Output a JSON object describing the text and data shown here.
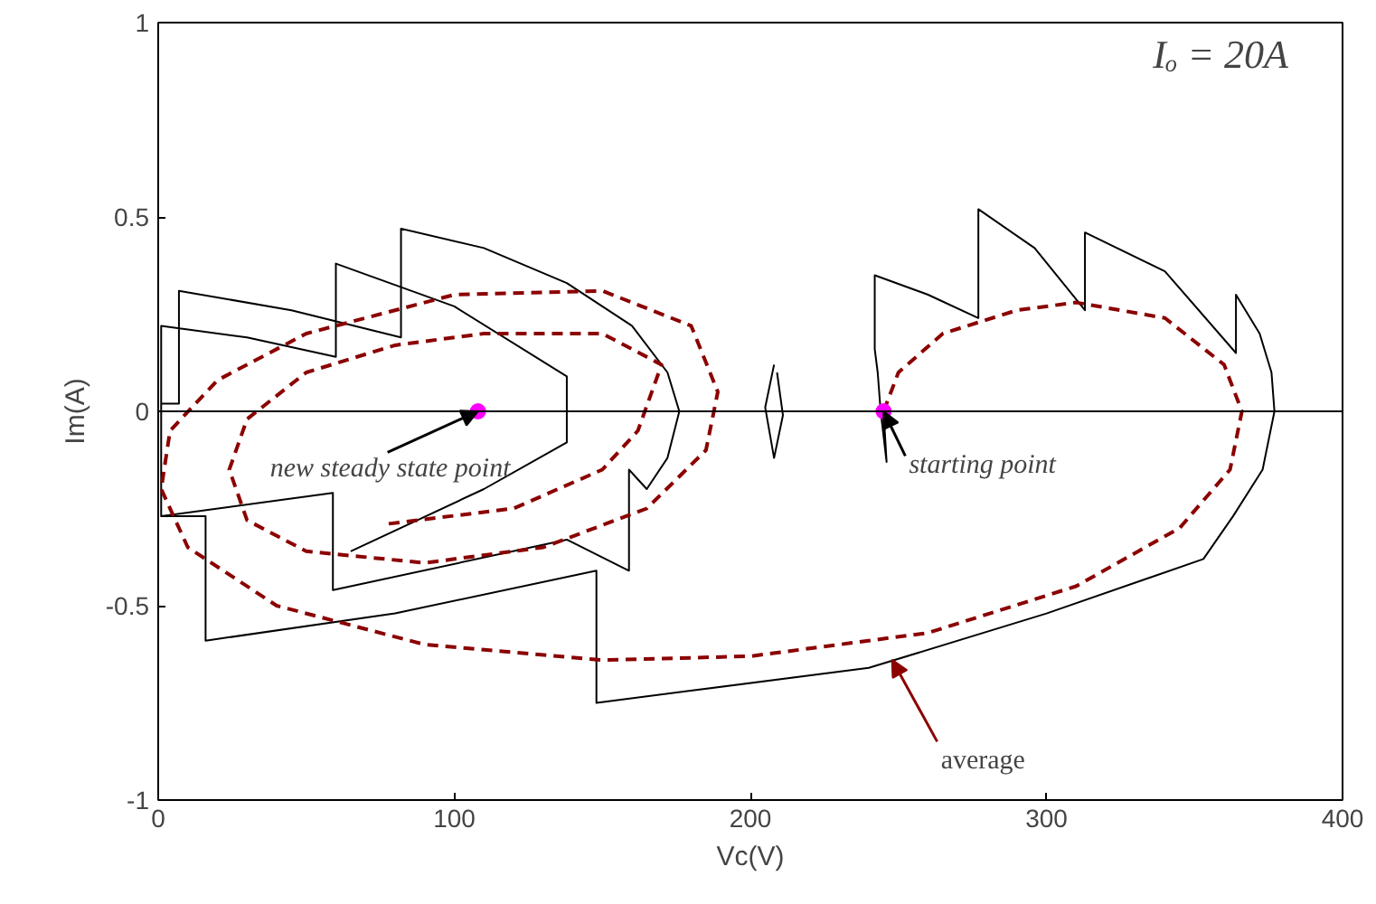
{
  "chart_data": {
    "type": "line",
    "xlabel": "Vc(V)",
    "ylabel": "Im(A)",
    "xlim": [
      0,
      400
    ],
    "xticks": [
      0,
      100,
      200,
      300,
      400
    ],
    "ylim": [
      -1,
      1
    ],
    "yticks": [
      -1,
      -0.5,
      0,
      0.5,
      1
    ],
    "grid": false,
    "marker": "none",
    "ref_lines": [
      {
        "axis": "y",
        "value": 0,
        "color": "#000000"
      }
    ],
    "series": [
      {
        "color": "#000000",
        "line_style": "solid",
        "x": [
          245,
          246,
          244,
          243,
          242,
          242,
          260,
          277,
          277,
          296,
          313,
          313,
          340,
          364,
          364,
          372,
          376,
          377,
          373,
          363,
          353,
          300,
          240,
          148,
          148,
          80,
          16,
          16,
          1,
          1,
          7,
          7,
          45,
          82,
          82,
          110,
          138,
          160,
          172,
          176,
          172,
          165,
          159,
          159,
          138,
          59,
          59,
          1,
          1,
          30,
          60,
          60,
          100,
          138,
          138,
          110,
          65
        ],
        "values": [
          0,
          -0.13,
          0,
          0.1,
          0.16,
          0.35,
          0.3,
          0.24,
          0.52,
          0.42,
          0.26,
          0.46,
          0.36,
          0.15,
          0.3,
          0.2,
          0.1,
          0,
          -0.15,
          -0.27,
          -0.38,
          -0.52,
          -0.66,
          -0.75,
          -0.41,
          -0.52,
          -0.59,
          -0.27,
          -0.27,
          0.02,
          0.02,
          0.31,
          0.26,
          0.19,
          0.47,
          0.42,
          0.33,
          0.22,
          0.1,
          0,
          -0.12,
          -0.2,
          -0.15,
          -0.41,
          -0.33,
          -0.46,
          -0.21,
          -0.27,
          0.22,
          0.19,
          0.14,
          0.38,
          0.27,
          0.09,
          -0.08,
          -0.2,
          -0.36
        ]
      },
      {
        "color": "#000000",
        "line_style": "solid",
        "x": [
          208,
          205,
          208,
          211,
          209
        ],
        "values": [
          0.12,
          0.01,
          -0.12,
          -0.01,
          0.1
        ]
      },
      {
        "color": "#8b0000",
        "line_style": "dashed",
        "x": [
          245,
          250,
          265,
          290,
          310,
          340,
          360,
          366,
          362,
          345,
          310,
          260,
          200,
          150,
          90,
          40,
          10,
          1,
          4,
          20,
          50,
          100,
          150,
          180,
          189,
          185,
          165,
          130,
          90,
          50,
          30,
          24,
          30,
          50,
          80,
          110,
          150,
          170,
          162,
          150,
          120,
          77
        ],
        "values": [
          0,
          0.1,
          0.2,
          0.26,
          0.28,
          0.24,
          0.12,
          0,
          -0.15,
          -0.3,
          -0.45,
          -0.57,
          -0.63,
          -0.64,
          -0.6,
          -0.5,
          -0.35,
          -0.2,
          -0.05,
          0.08,
          0.2,
          0.3,
          0.31,
          0.22,
          0.05,
          -0.1,
          -0.25,
          -0.35,
          -0.39,
          -0.36,
          -0.28,
          -0.15,
          -0.02,
          0.1,
          0.17,
          0.2,
          0.2,
          0.12,
          -0.05,
          -0.15,
          -0.25,
          -0.29
        ]
      },
      {
        "type": "scatter",
        "color": "#ff00ff",
        "marker": "circle",
        "x": [
          108,
          245
        ],
        "values": [
          0,
          0
        ]
      }
    ],
    "annotations": [
      {
        "text": "new steady state point",
        "x": 108,
        "y": 0
      },
      {
        "text": "starting point",
        "x": 245,
        "y": 0
      },
      {
        "text": "average",
        "x": 246,
        "y": -0.62
      },
      "Iₒ = 20A"
    ]
  }
}
